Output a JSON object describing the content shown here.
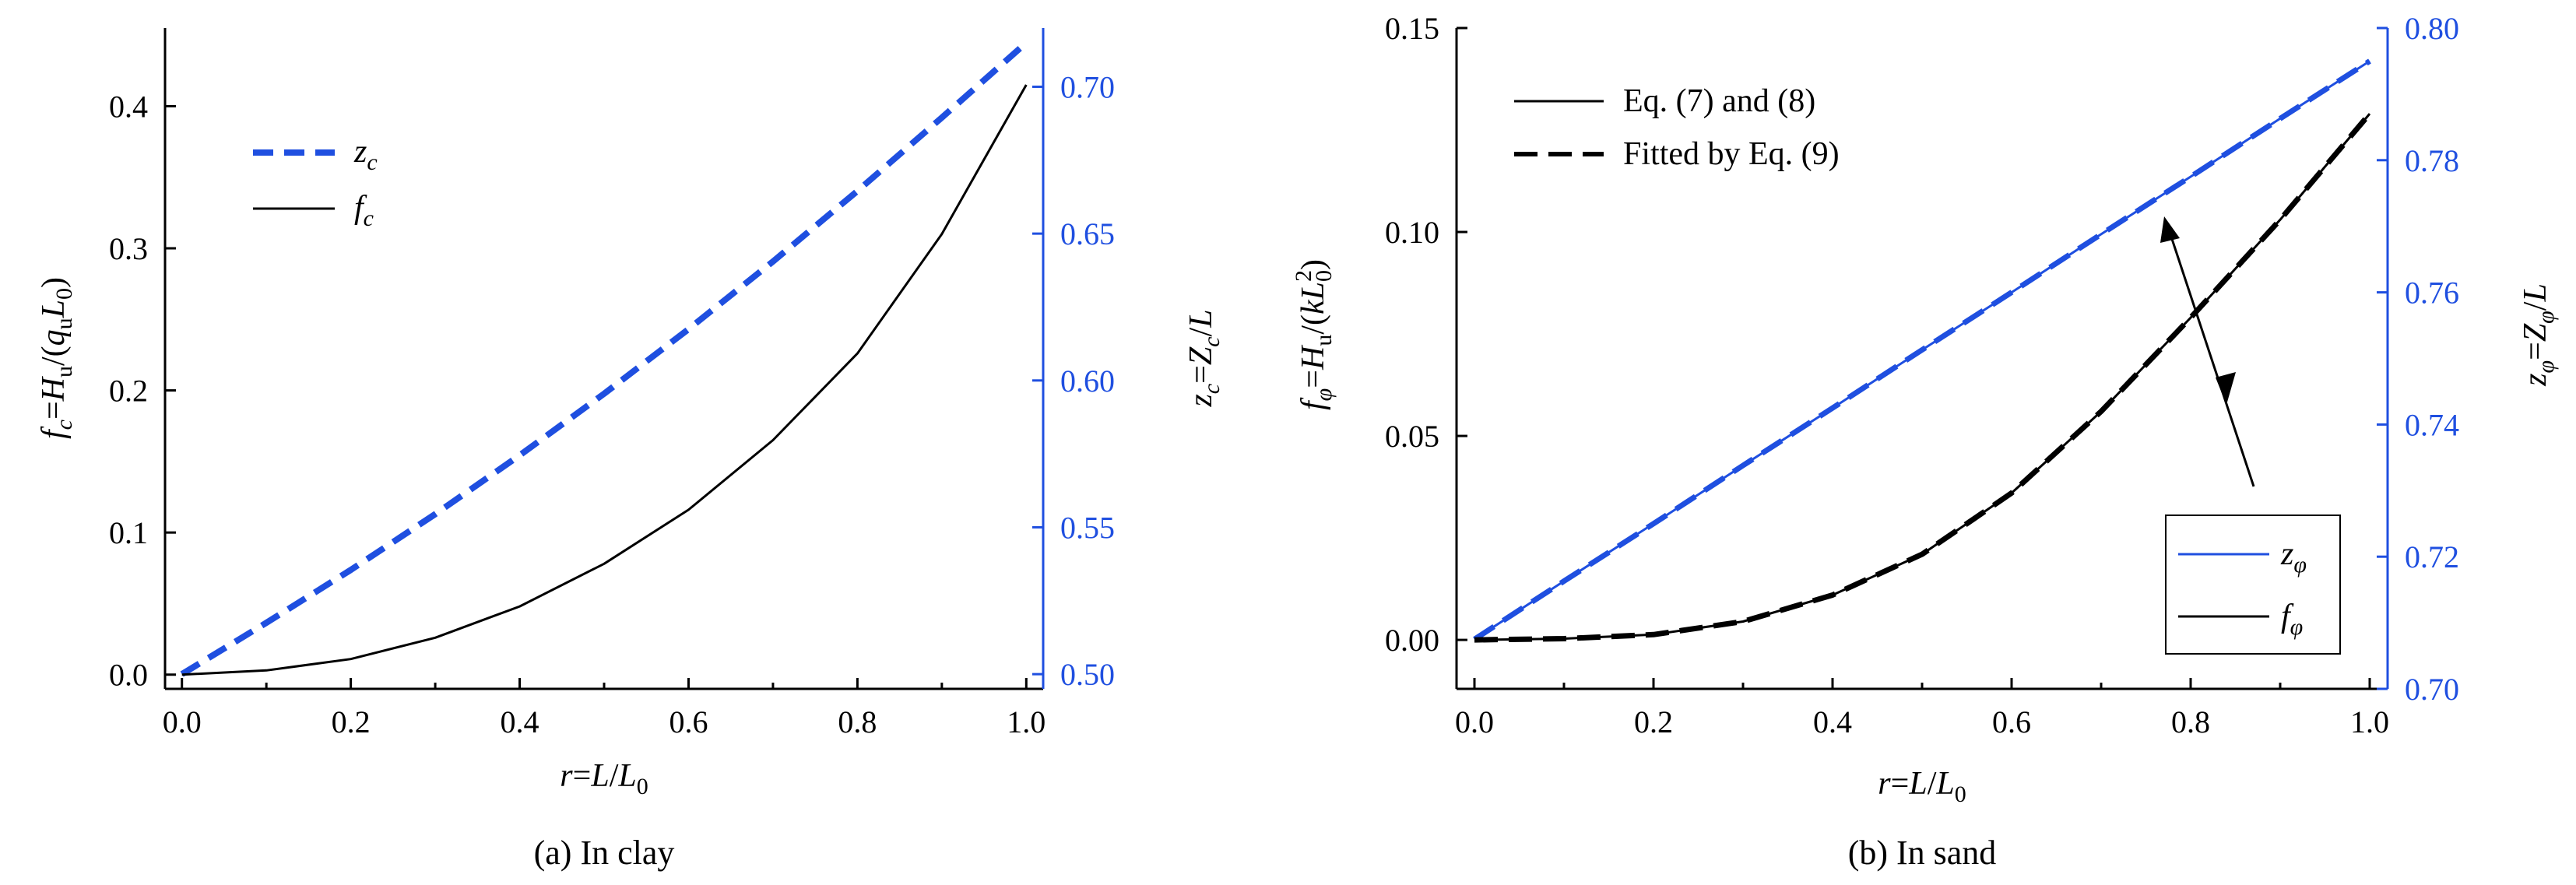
{
  "chart_data": [
    {
      "type": "line",
      "caption": "(a) In clay",
      "xlabel": "r=L/L0",
      "ylabel_left": "fc=Hu/(quL0)",
      "ylabel_right": "zc=Zc/L",
      "xlim": [
        -0.02,
        1.02
      ],
      "ylim_left": [
        -0.01,
        0.455
      ],
      "ylim_right": [
        0.495,
        0.72
      ],
      "xticks": [
        "0.0",
        "0.2",
        "0.4",
        "0.6",
        "0.8",
        "1.0"
      ],
      "yticks_left": [
        "0.0",
        "0.1",
        "0.2",
        "0.3",
        "0.4"
      ],
      "yticks_right": [
        "0.50",
        "0.55",
        "0.60",
        "0.65",
        "0.70"
      ],
      "legend_position": "top-left",
      "colors": {
        "blue": "#1f4fe0",
        "black": "#000000"
      },
      "series": [
        {
          "name": "zc",
          "axis": "right",
          "style": "dashed",
          "color": "#1f4fe0",
          "x": [
            0,
            0.1,
            0.2,
            0.3,
            0.4,
            0.5,
            0.6,
            0.7,
            0.8,
            0.9,
            1.0
          ],
          "values": [
            0.5,
            0.5175,
            0.5355,
            0.5545,
            0.5745,
            0.5955,
            0.6175,
            0.6405,
            0.6645,
            0.6895,
            0.715
          ]
        },
        {
          "name": "fc",
          "axis": "left",
          "style": "solid",
          "color": "#000000",
          "x": [
            0,
            0.1,
            0.2,
            0.3,
            0.4,
            0.5,
            0.6,
            0.7,
            0.8,
            0.9,
            1.0
          ],
          "values": [
            0.0,
            0.003,
            0.011,
            0.026,
            0.048,
            0.078,
            0.116,
            0.165,
            0.226,
            0.31,
            0.415
          ]
        }
      ]
    },
    {
      "type": "line",
      "caption": "(b) In sand",
      "xlabel": "r=L/L0",
      "ylabel_left": "fφ=Hu/(kL0^2)",
      "ylabel_right": "zφ=Zφ/L",
      "xlim": [
        -0.02,
        1.02
      ],
      "ylim_left": [
        -0.012,
        0.15
      ],
      "ylim_right": [
        0.7,
        0.8
      ],
      "xticks": [
        "0.0",
        "0.2",
        "0.4",
        "0.6",
        "0.8",
        "1.0"
      ],
      "yticks_left": [
        "0.00",
        "0.05",
        "0.10",
        "0.15"
      ],
      "yticks_right": [
        "0.70",
        "0.72",
        "0.74",
        "0.76",
        "0.78",
        "0.80"
      ],
      "legend_top": {
        "position": "top-left",
        "entries": [
          {
            "label": "Eq. (7) and (8)",
            "style": "solid"
          },
          {
            "label": "Fitted by Eq. (9)",
            "style": "dashed"
          }
        ]
      },
      "legend_bottom": {
        "position": "bottom-right",
        "entries": [
          {
            "label": "zφ",
            "color": "#1f4fe0"
          },
          {
            "label": "fφ",
            "color": "#000000"
          }
        ]
      },
      "series": [
        {
          "name": "zφ",
          "axis": "right",
          "style": "solid",
          "color": "#1f4fe0",
          "x": [
            0,
            0.1,
            0.2,
            0.3,
            0.4,
            0.5,
            0.6,
            0.7,
            0.8,
            0.9,
            1.0
          ],
          "values": [
            0.7075,
            0.7163,
            0.725,
            0.7338,
            0.7425,
            0.7513,
            0.76,
            0.7688,
            0.7775,
            0.7863,
            0.795
          ]
        },
        {
          "name": "zφ fitted",
          "axis": "right",
          "style": "dashed",
          "color": "#1f4fe0",
          "x": [
            0,
            0.1,
            0.2,
            0.3,
            0.4,
            0.5,
            0.6,
            0.7,
            0.8,
            0.9,
            1.0
          ],
          "values": [
            0.7075,
            0.7163,
            0.725,
            0.7338,
            0.7425,
            0.7513,
            0.76,
            0.7688,
            0.7775,
            0.7863,
            0.795
          ]
        },
        {
          "name": "fφ",
          "axis": "left",
          "style": "solid",
          "color": "#000000",
          "x": [
            0,
            0.1,
            0.2,
            0.3,
            0.4,
            0.5,
            0.6,
            0.7,
            0.8,
            0.9,
            1.0
          ],
          "values": [
            0.0,
            0.0003,
            0.0013,
            0.0045,
            0.011,
            0.021,
            0.036,
            0.056,
            0.079,
            0.103,
            0.129
          ]
        },
        {
          "name": "fφ fitted",
          "axis": "left",
          "style": "dashed",
          "color": "#000000",
          "x": [
            0,
            0.1,
            0.2,
            0.3,
            0.4,
            0.5,
            0.6,
            0.7,
            0.8,
            0.9,
            1.0
          ],
          "values": [
            0.0,
            0.0003,
            0.0013,
            0.0045,
            0.011,
            0.021,
            0.036,
            0.056,
            0.079,
            0.103,
            0.129
          ]
        }
      ]
    }
  ]
}
